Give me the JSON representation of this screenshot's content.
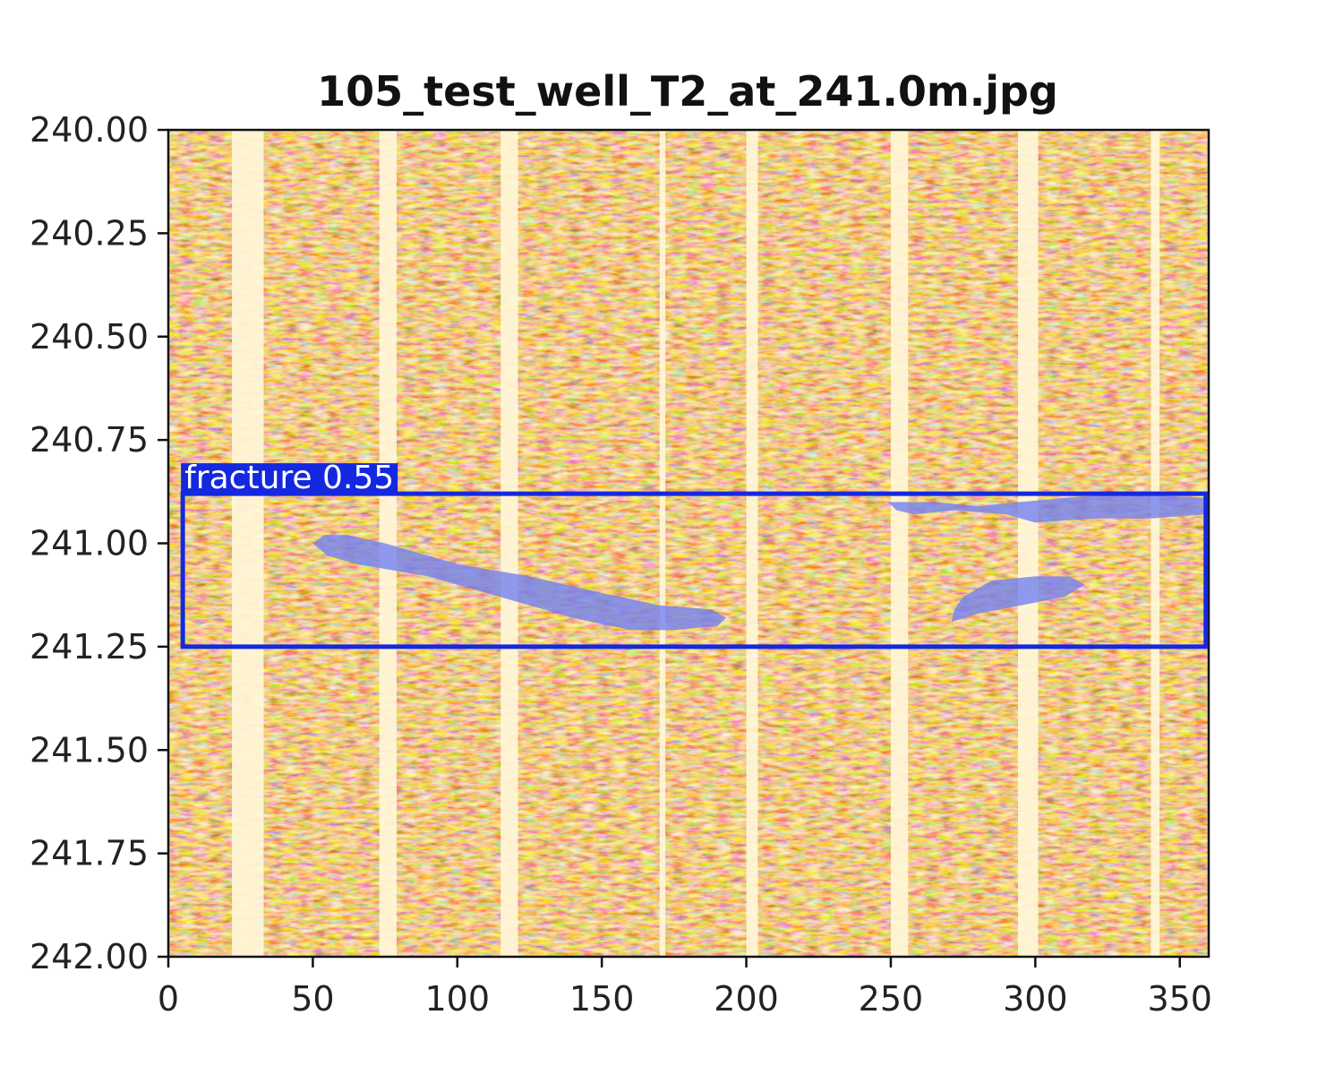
{
  "chart_data": {
    "type": "heatmap",
    "title": "105_test_well_T2_at_241.0m.jpg",
    "xlabel": "",
    "ylabel": "",
    "xlim": [
      0,
      360
    ],
    "ylim": [
      242.0,
      240.0
    ],
    "x_ticks": [
      0,
      50,
      100,
      150,
      200,
      250,
      300,
      350
    ],
    "x_tick_labels": [
      "0",
      "50",
      "100",
      "150",
      "200",
      "250",
      "300",
      "350"
    ],
    "y_ticks": [
      240.0,
      240.25,
      240.5,
      240.75,
      241.0,
      241.25,
      241.5,
      241.75,
      242.0
    ],
    "y_tick_labels": [
      "240.00",
      "240.25",
      "240.50",
      "240.75",
      "241.00",
      "241.25",
      "241.50",
      "241.75",
      "242.00"
    ],
    "colormap": "orange-brown",
    "colors": {
      "high": "#fff6d8",
      "mid": "#e79a3a",
      "low": "#5a2100",
      "detection": "#1428e0",
      "mask": "#6f7ff2"
    },
    "pad_columns": [
      {
        "x0": 22,
        "x1": 33
      },
      {
        "x0": 73,
        "x1": 79
      },
      {
        "x0": 115,
        "x1": 121
      },
      {
        "x0": 170,
        "x1": 172
      },
      {
        "x0": 200,
        "x1": 204
      },
      {
        "x0": 250,
        "x1": 256
      },
      {
        "x0": 294,
        "x1": 301
      },
      {
        "x0": 340,
        "x1": 343
      }
    ],
    "detection": {
      "label": "fracture 0.55",
      "class": "fracture",
      "confidence": 0.55,
      "box": {
        "x0": 5,
        "x1": 359,
        "y0": 240.88,
        "y1": 241.25
      },
      "masks": [
        {
          "name": "fracture-mask-left",
          "points": [
            [
              50,
              241.0
            ],
            [
              54,
              240.98
            ],
            [
              62,
              240.98
            ],
            [
              75,
              241.0
            ],
            [
              100,
              241.05
            ],
            [
              125,
              241.08
            ],
            [
              150,
              241.12
            ],
            [
              170,
              241.15
            ],
            [
              188,
              241.16
            ],
            [
              193,
              241.18
            ],
            [
              190,
              241.2
            ],
            [
              175,
              241.21
            ],
            [
              160,
              241.21
            ],
            [
              140,
              241.18
            ],
            [
              115,
              241.13
            ],
            [
              90,
              241.08
            ],
            [
              65,
              241.05
            ],
            [
              55,
              241.03
            ]
          ]
        },
        {
          "name": "fracture-mask-right-top",
          "points": [
            [
              249,
              240.9
            ],
            [
              265,
              240.9
            ],
            [
              280,
              240.91
            ],
            [
              295,
              240.9
            ],
            [
              310,
              240.89
            ],
            [
              330,
              240.88
            ],
            [
              359,
              240.89
            ],
            [
              359,
              240.93
            ],
            [
              340,
              240.94
            ],
            [
              320,
              240.94
            ],
            [
              300,
              240.95
            ],
            [
              290,
              240.93
            ],
            [
              272,
              240.92
            ],
            [
              258,
              240.93
            ],
            [
              252,
              240.92
            ]
          ]
        },
        {
          "name": "fracture-mask-right-bottom",
          "points": [
            [
              275,
              241.13
            ],
            [
              285,
              241.09
            ],
            [
              300,
              241.08
            ],
            [
              312,
              241.08
            ],
            [
              317,
              241.1
            ],
            [
              310,
              241.13
            ],
            [
              295,
              241.15
            ],
            [
              280,
              241.17
            ],
            [
              271,
              241.19
            ],
            [
              272,
              241.16
            ]
          ]
        }
      ]
    }
  }
}
